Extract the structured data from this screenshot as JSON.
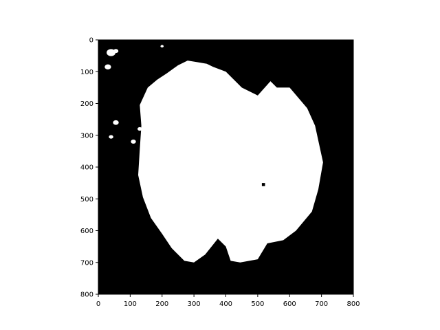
{
  "chart_data": {
    "type": "heatmap",
    "title": "",
    "xlabel": "",
    "ylabel": "",
    "xlim": [
      0,
      800
    ],
    "ylim": [
      800,
      0
    ],
    "x_ticks": [
      0,
      100,
      200,
      300,
      400,
      500,
      600,
      700,
      800
    ],
    "y_ticks": [
      0,
      100,
      200,
      300,
      400,
      500,
      600,
      700,
      800
    ],
    "x_tick_labels": [
      "0",
      "100",
      "200",
      "300",
      "400",
      "500",
      "600",
      "700",
      "800"
    ],
    "y_tick_labels": [
      "0",
      "100",
      "200",
      "300",
      "400",
      "500",
      "600",
      "700",
      "800"
    ],
    "colormap": [
      "#000000",
      "#ffffff"
    ],
    "grid": false,
    "mask_outline": [
      [
        130,
        205
      ],
      [
        155,
        150
      ],
      [
        185,
        125
      ],
      [
        215,
        105
      ],
      [
        250,
        80
      ],
      [
        280,
        65
      ],
      [
        310,
        70
      ],
      [
        340,
        75
      ],
      [
        360,
        85
      ],
      [
        400,
        100
      ],
      [
        450,
        150
      ],
      [
        500,
        175
      ],
      [
        540,
        130
      ],
      [
        560,
        150
      ],
      [
        600,
        150
      ],
      [
        655,
        215
      ],
      [
        680,
        270
      ],
      [
        705,
        385
      ],
      [
        690,
        470
      ],
      [
        670,
        540
      ],
      [
        620,
        600
      ],
      [
        580,
        630
      ],
      [
        530,
        640
      ],
      [
        500,
        690
      ],
      [
        445,
        700
      ],
      [
        415,
        695
      ],
      [
        400,
        650
      ],
      [
        375,
        625
      ],
      [
        335,
        675
      ],
      [
        300,
        700
      ],
      [
        270,
        695
      ],
      [
        230,
        655
      ],
      [
        200,
        610
      ],
      [
        165,
        560
      ],
      [
        140,
        495
      ],
      [
        125,
        425
      ],
      [
        130,
        345
      ],
      [
        135,
        270
      ]
    ],
    "mask_holes": [
      [
        [
          513,
          450
        ],
        [
          523,
          450
        ],
        [
          523,
          460
        ],
        [
          513,
          460
        ]
      ]
    ],
    "mask_specks": [
      [
        40,
        40,
        14
      ],
      [
        30,
        85,
        10
      ],
      [
        55,
        35,
        8
      ],
      [
        55,
        260,
        9
      ],
      [
        40,
        305,
        7
      ],
      [
        110,
        320,
        8
      ],
      [
        130,
        280,
        7
      ],
      [
        145,
        220,
        9
      ],
      [
        150,
        190,
        8
      ],
      [
        200,
        20,
        5
      ]
    ]
  }
}
